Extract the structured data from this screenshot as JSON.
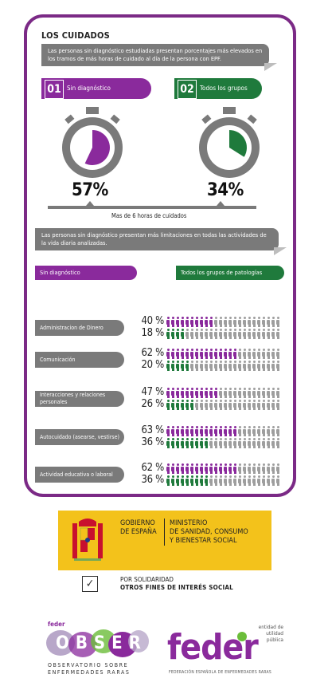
{
  "section": {
    "title": "LOS CUIDADOS",
    "intro": "Las personas sin diagnóstico estudiadas presentan porcentajes más elevados en los tramos de más horas de cuidado al día de la persona con EPF.",
    "groups": [
      {
        "num": "01",
        "label": "Sin diagnóstico",
        "percent_text": "57%",
        "value": 57,
        "color": "#8a2a9c"
      },
      {
        "num": "02",
        "label": "Todos los grupos",
        "percent_text": "34%",
        "value": 34,
        "color": "#1f7a3c"
      }
    ],
    "axis_caption": "Mas de 6 horas de cuidados",
    "intro2": "Las personas sin diagnóstico presentan más limitaciones en todas las actividades de la vida diaria analizadas.",
    "legend": {
      "a": "Sin diagnóstico",
      "b": "Todos los grupos de patologías"
    }
  },
  "activities": [
    {
      "label": "Administracion de Dinero",
      "a_text": "40 %",
      "a": 40,
      "b_text": "18 %",
      "b": 18
    },
    {
      "label": "Comunicación",
      "a_text": "62 %",
      "a": 62,
      "b_text": "20 %",
      "b": 20
    },
    {
      "label": "Interacciones y relaciones personales",
      "a_text": "47 %",
      "a": 47,
      "b_text": "26 %",
      "b": 26
    },
    {
      "label": "Autocuidado (asearse, vestirse)",
      "a_text": "63 %",
      "a": 63,
      "b_text": "36 %",
      "b": 36
    },
    {
      "label": "Actividad educativa o laboral",
      "a_text": "62 %",
      "a": 62,
      "b_text": "36 %",
      "b": 36
    }
  ],
  "colors": {
    "purple": "#8a2a9c",
    "green": "#1f7a3c",
    "grey": "#9e9e9e",
    "yellow": "#f3c21b"
  },
  "gobierno": {
    "left_line1": "GOBIERNO",
    "left_line2": "DE ESPAÑA",
    "right_line1": "MINISTERIO",
    "right_line2": "DE SANIDAD, CONSUMO",
    "right_line3": "Y BIENESTAR SOCIAL"
  },
  "solidaridad": {
    "line1": "POR SOLIDARIDAD",
    "line2": "OTROS FINES DE INTERÉS SOCIAL",
    "check": "✓"
  },
  "logos": {
    "obser_small": "feder",
    "obser_word": "OBSER",
    "obser_line1": "OBSERVATORIO SOBRE",
    "obser_line2": "ENFERMEDADES RARAS",
    "feder_word": "feder",
    "feder_note1": "entidad de",
    "feder_note2": "utilidad pública",
    "feder_line": "FEDERACIÓN ESPAÑOLA DE ENFERMEDADES RARAS"
  }
}
